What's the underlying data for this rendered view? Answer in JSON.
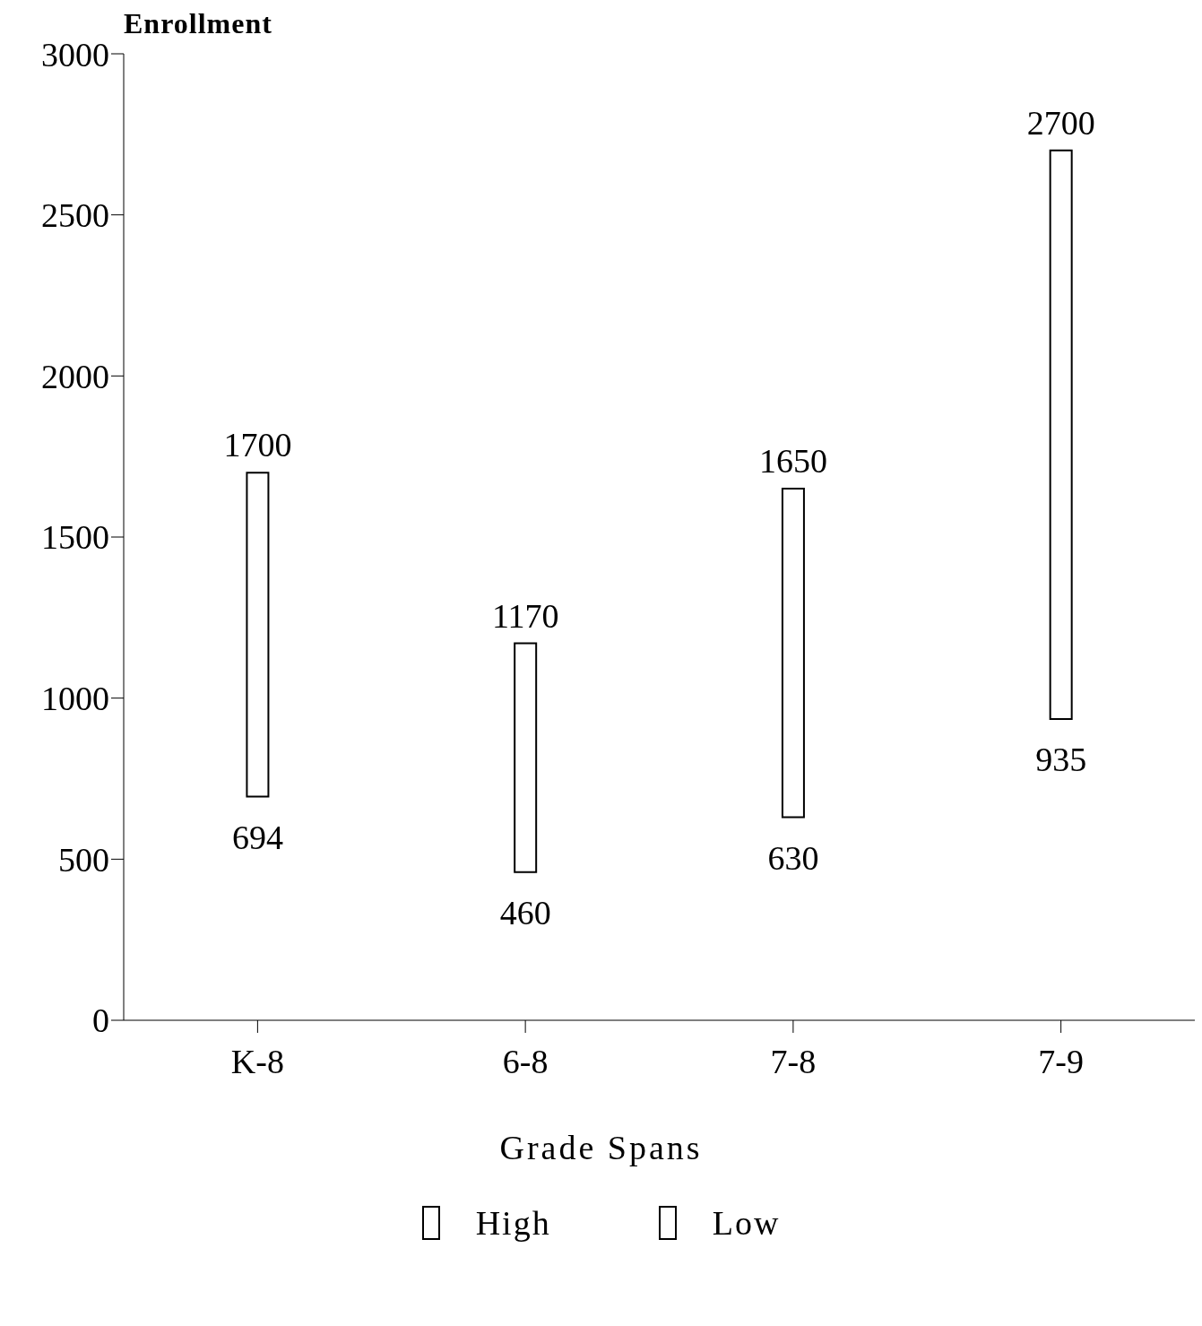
{
  "chart_data": {
    "type": "bar",
    "ylabel": "Enrollment",
    "xlabel": "Grade Spans",
    "categories": [
      "K-8",
      "6-8",
      "7-8",
      "7-9"
    ],
    "base": [
      694,
      460,
      630,
      935
    ],
    "values": [
      1006,
      710,
      1020,
      1765
    ],
    "color": "#ffffff",
    "annotations": [
      {
        "text": "1700",
        "x": "K-8",
        "y": 1700
      },
      {
        "text": "694",
        "x": "K-8",
        "y": 694
      },
      {
        "text": "1170",
        "x": "6-8",
        "y": 1170
      },
      {
        "text": "460",
        "x": "6-8",
        "y": 460
      },
      {
        "text": "1650",
        "x": "7-8",
        "y": 1650
      },
      {
        "text": "630",
        "x": "7-8",
        "y": 630
      },
      {
        "text": "2700",
        "x": "7-9",
        "y": 2700
      },
      {
        "text": "935",
        "x": "7-9",
        "y": 935
      },
      "High",
      "Low"
    ],
    "ylim": [
      0,
      3000
    ],
    "yticks": [
      0,
      500,
      1000,
      1500,
      2000,
      2500,
      3000
    ]
  }
}
